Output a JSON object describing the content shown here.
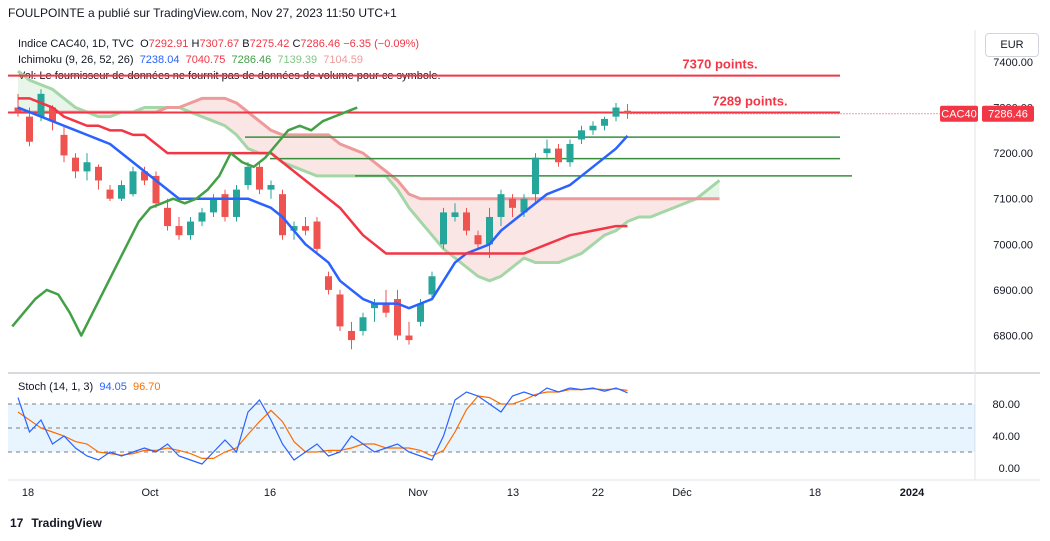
{
  "header": {
    "publisher_line": "FOULPOINTE a publié sur TradingView.com, Nov 27, 2023 11:50 UTC+1"
  },
  "legend": {
    "symbol": "Indice CAC40, 1D, TVC",
    "o_label": "O",
    "o": "7292.91",
    "h_label": "H",
    "h": "7307.67",
    "b_label": "B",
    "b": "7275.42",
    "c_label": "C",
    "c": "7286.46",
    "change": "−6.35 (−0.09%)",
    "ichimoku_label": "Ichimoku (9, 26, 52, 26)",
    "ichimoku_values": [
      "7238.04",
      "7040.75",
      "7286.46",
      "7139.39",
      "7104.59"
    ],
    "vol_text": "Vol: Le fournisseur de données ne fournit pas de données de volume pour ce symbole."
  },
  "stoch_legend": {
    "label": "Stoch (14, 1, 3)",
    "k": "94.05",
    "d": "96.70"
  },
  "currency": "EUR",
  "footer": {
    "logo": "17",
    "brand": "TradingView"
  },
  "colors": {
    "up": "#26a69a",
    "down": "#ef5350",
    "tenkan": "#2962ff",
    "kijun": "#f23645",
    "chikou": "#43a047",
    "spanA": "#a5d6a7",
    "spanB": "#ef9a9a",
    "stochK": "#2962ff",
    "stochD": "#ff6d00"
  },
  "chart_data": {
    "type": "candlestick",
    "y_ticks": [
      6800,
      6900,
      7000,
      7100,
      7200,
      7300,
      7400
    ],
    "y_tick_labels": [
      "6800.00",
      "6900.00",
      "7000.00",
      "7100.00",
      "7200.00",
      "7300.00",
      "7400.00"
    ],
    "ylim": [
      6720,
      7470
    ],
    "x_tick_labels": [
      "18",
      "Oct",
      "16",
      "Nov",
      "13",
      "22",
      "Déc",
      "18",
      "2024"
    ],
    "last_price_label": "CAC40",
    "last_price": "7286.46",
    "annotations": [
      {
        "text": "7370 points.",
        "y": 7370
      },
      {
        "text": "7289 points.",
        "y": 7289
      }
    ],
    "horizontal_lines_red": [
      7370,
      7289
    ],
    "horizontal_lines_green": [
      7235,
      7188,
      7150
    ],
    "candles": [
      [
        7300,
        7330,
        7280,
        7290
      ],
      [
        7280,
        7300,
        7215,
        7225
      ],
      [
        7280,
        7340,
        7270,
        7330
      ],
      [
        7300,
        7305,
        7250,
        7270
      ],
      [
        7240,
        7260,
        7180,
        7195
      ],
      [
        7190,
        7200,
        7145,
        7160
      ],
      [
        7160,
        7200,
        7140,
        7180
      ],
      [
        7170,
        7175,
        7120,
        7140
      ],
      [
        7120,
        7130,
        7095,
        7100
      ],
      [
        7100,
        7140,
        7095,
        7130
      ],
      [
        7110,
        7170,
        7105,
        7160
      ],
      [
        7160,
        7170,
        7130,
        7140
      ],
      [
        7150,
        7160,
        7080,
        7090
      ],
      [
        7080,
        7100,
        7030,
        7040
      ],
      [
        7040,
        7060,
        7010,
        7020
      ],
      [
        7020,
        7060,
        7010,
        7050
      ],
      [
        7050,
        7080,
        7040,
        7070
      ],
      [
        7070,
        7110,
        7060,
        7100
      ],
      [
        7110,
        7120,
        7050,
        7060
      ],
      [
        7060,
        7130,
        7050,
        7120
      ],
      [
        7130,
        7180,
        7120,
        7170
      ],
      [
        7170,
        7180,
        7110,
        7120
      ],
      [
        7120,
        7140,
        7100,
        7130
      ],
      [
        7110,
        7120,
        7010,
        7020
      ],
      [
        7030,
        7050,
        7010,
        7040
      ],
      [
        7040,
        7060,
        7020,
        7030
      ],
      [
        7050,
        7060,
        6980,
        6990
      ],
      [
        6930,
        6940,
        6890,
        6900
      ],
      [
        6890,
        6900,
        6810,
        6820
      ],
      [
        6810,
        6830,
        6770,
        6790
      ],
      [
        6810,
        6850,
        6800,
        6840
      ],
      [
        6860,
        6880,
        6830,
        6870
      ],
      [
        6870,
        6900,
        6840,
        6850
      ],
      [
        6880,
        6900,
        6790,
        6800
      ],
      [
        6800,
        6830,
        6780,
        6790
      ],
      [
        6830,
        6880,
        6820,
        6870
      ],
      [
        6890,
        6940,
        6880,
        6930
      ],
      [
        7000,
        7080,
        6990,
        7070
      ],
      [
        7060,
        7090,
        7050,
        7070
      ],
      [
        7070,
        7080,
        7020,
        7030
      ],
      [
        7020,
        7030,
        6990,
        7000
      ],
      [
        7000,
        7080,
        6970,
        7060
      ],
      [
        7060,
        7120,
        7040,
        7110
      ],
      [
        7100,
        7110,
        7060,
        7080
      ],
      [
        7070,
        7110,
        7060,
        7100
      ],
      [
        7110,
        7200,
        7090,
        7190
      ],
      [
        7200,
        7230,
        7190,
        7210
      ],
      [
        7210,
        7220,
        7170,
        7180
      ],
      [
        7180,
        7230,
        7170,
        7220
      ],
      [
        7230,
        7260,
        7220,
        7250
      ],
      [
        7250,
        7270,
        7240,
        7260
      ],
      [
        7260,
        7280,
        7250,
        7275
      ],
      [
        7280,
        7310,
        7270,
        7300
      ],
      [
        7292.91,
        7307.67,
        7275.42,
        7286.46
      ]
    ],
    "series": [
      {
        "name": "Tenkan",
        "values": [
          7300,
          7290,
          7280,
          7270,
          7260,
          7250,
          7240,
          7230,
          7220,
          7200,
          7180,
          7160,
          7140,
          7120,
          7100,
          7100,
          7100,
          7100,
          7100,
          7100,
          7100,
          7090,
          7080,
          7060,
          7030,
          7000,
          6980,
          6960,
          6920,
          6900,
          6880,
          6870,
          6870,
          6870,
          6860,
          6870,
          6880,
          6920,
          6960,
          6980,
          6990,
          7000,
          7030,
          7050,
          7070,
          7090,
          7110,
          7120,
          7130,
          7150,
          7170,
          7190,
          7210,
          7238
        ]
      },
      {
        "name": "Kijun",
        "values": [
          7320,
          7320,
          7310,
          7300,
          7280,
          7270,
          7260,
          7260,
          7250,
          7250,
          7240,
          7240,
          7220,
          7200,
          7200,
          7200,
          7200,
          7200,
          7200,
          7200,
          7200,
          7200,
          7200,
          7180,
          7160,
          7140,
          7120,
          7100,
          7080,
          7050,
          7020,
          7000,
          6980,
          6980,
          6980,
          6980,
          6980,
          6980,
          6980,
          6980,
          6980,
          6980,
          6980,
          6980,
          6980,
          6990,
          7000,
          7010,
          7020,
          7025,
          7030,
          7035,
          7040,
          7040
        ]
      },
      {
        "name": "Chikou",
        "values": [
          6820,
          6850,
          6880,
          6900,
          6890,
          6850,
          6800,
          6850,
          6900,
          6950,
          7000,
          7050,
          7080,
          7090,
          7100,
          7090,
          7100,
          7120,
          7150,
          7200,
          7180,
          7170,
          7190,
          7220,
          7250,
          7260,
          7250,
          7270,
          7280,
          7290,
          7300
        ]
      },
      {
        "name": "Span A",
        "values": [
          7380,
          7360,
          7350,
          7340,
          7320,
          7300,
          7290,
          7280,
          7280,
          7290,
          7290,
          7300,
          7300,
          7300,
          7300,
          7290,
          7280,
          7270,
          7260,
          7240,
          7210,
          7200,
          7200,
          7180,
          7170,
          7160,
          7150,
          7150,
          7150,
          7150,
          7150,
          7150,
          7150,
          7120,
          7080,
          7050,
          7020,
          6990,
          6970,
          6950,
          6930,
          6920,
          6930,
          6950,
          6970,
          6960,
          6960,
          6960,
          6970,
          6980,
          7000,
          7020,
          7030,
          7050,
          7060,
          7060,
          7070,
          7080,
          7090,
          7100,
          7120,
          7140
        ]
      },
      {
        "name": "Span B",
        "values": [
          7290,
          7290,
          7290,
          7290,
          7290,
          7290,
          7290,
          7290,
          7290,
          7290,
          7290,
          7290,
          7290,
          7300,
          7300,
          7310,
          7320,
          7320,
          7320,
          7310,
          7290,
          7270,
          7250,
          7240,
          7240,
          7240,
          7240,
          7240,
          7220,
          7210,
          7200,
          7180,
          7160,
          7140,
          7110,
          7100,
          7100,
          7100,
          7100,
          7100,
          7100,
          7100,
          7100,
          7100,
          7100,
          7100,
          7100,
          7100,
          7100,
          7100,
          7100,
          7100,
          7100,
          7100,
          7100,
          7100,
          7100,
          7100,
          7100,
          7100,
          7100,
          7100
        ]
      }
    ],
    "stochastic": {
      "label": "Stoch (14, 1, 3)",
      "y_tick_labels": [
        "80.00",
        "40.00",
        "0.00"
      ],
      "bands": [
        80,
        20
      ],
      "k": [
        88,
        45,
        60,
        30,
        40,
        25,
        15,
        10,
        20,
        15,
        20,
        25,
        20,
        30,
        15,
        10,
        5,
        20,
        35,
        20,
        70,
        85,
        60,
        30,
        10,
        20,
        30,
        15,
        20,
        40,
        30,
        20,
        25,
        30,
        20,
        15,
        10,
        40,
        85,
        95,
        90,
        80,
        70,
        90,
        95,
        90,
        100,
        95,
        100,
        98,
        100,
        96,
        100,
        94
      ],
      "d": [
        70,
        60,
        50,
        45,
        40,
        33,
        30,
        20,
        18,
        16,
        18,
        22,
        22,
        25,
        22,
        18,
        12,
        12,
        20,
        25,
        42,
        58,
        72,
        58,
        33,
        20,
        20,
        22,
        22,
        25,
        30,
        30,
        25,
        25,
        25,
        22,
        15,
        22,
        45,
        73,
        90,
        88,
        80,
        80,
        85,
        92,
        95,
        95,
        98,
        98,
        99,
        98,
        99,
        97
      ]
    }
  }
}
